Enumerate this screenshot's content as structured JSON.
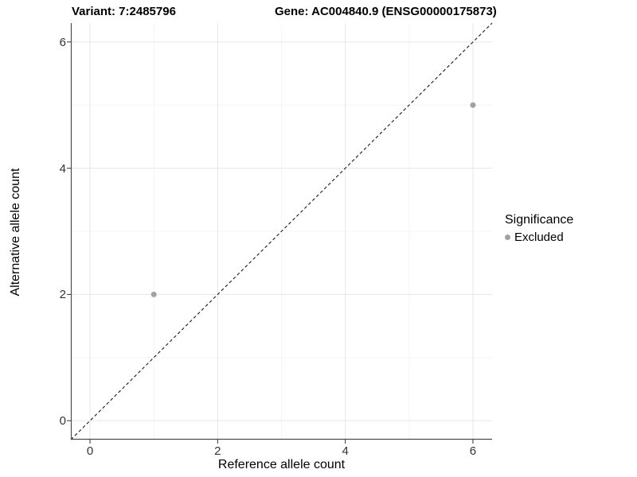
{
  "header": {
    "variant_title": "Variant: 7:2485796",
    "gene_title": "Gene: AC004840.9 (ENSG00000175873)"
  },
  "chart_data": {
    "type": "scatter",
    "xlabel": "Reference allele count",
    "ylabel": "Alternative allele count",
    "xlim": [
      -0.3,
      6.3
    ],
    "ylim": [
      -0.3,
      6.3
    ],
    "x_major_ticks": [
      0,
      2,
      4,
      6
    ],
    "y_major_ticks": [
      0,
      2,
      4,
      6
    ],
    "x_minor_ticks": [
      1,
      3,
      5
    ],
    "y_minor_ticks": [
      1,
      3,
      5
    ],
    "grid": true,
    "series": [
      {
        "name": "Excluded",
        "color": "#a1a1a1",
        "points": [
          {
            "x": 1,
            "y": 2
          },
          {
            "x": 6,
            "y": 5
          }
        ]
      }
    ],
    "reference_line": {
      "type": "identity",
      "style": "dashed",
      "from": [
        -0.3,
        -0.3
      ],
      "to": [
        6.3,
        6.3
      ]
    },
    "legend": {
      "position": "right",
      "title": "Significance",
      "entries": [
        {
          "label": "Excluded",
          "color": "#a1a1a1"
        }
      ]
    },
    "colors": {
      "background": "#ffffff",
      "major_grid": "#e6e6e6",
      "minor_grid": "#f3f3f3",
      "axis_line": "#4d4d4d",
      "tick_mark": "#333333",
      "tick_text": "#333333",
      "point": "#a1a1a1",
      "ref_line": "#1a1a1a"
    }
  }
}
